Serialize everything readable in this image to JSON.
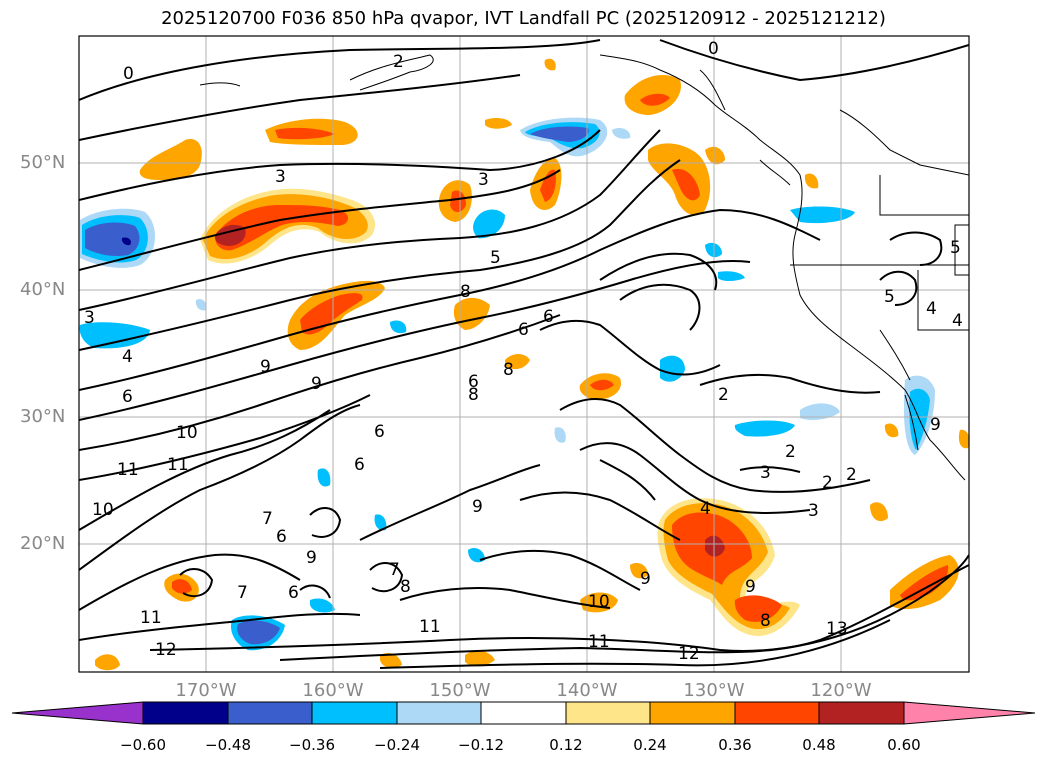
{
  "title": "2025120700 F036 850 hPa qvapor, IVT Landfall PC (2025120912 - 2025121212)",
  "lat_labels": [
    "50°N",
    "40°N",
    "30°N",
    "20°N"
  ],
  "lon_labels": [
    "170°W",
    "160°W",
    "150°W",
    "140°W",
    "130°W",
    "120°W"
  ],
  "colorbar": {
    "colors": [
      "#9932cc",
      "#00008b",
      "#3a5fcd",
      "#00bfff",
      "#add8f6",
      "#ffffff",
      "#ffe58a",
      "#ffa500",
      "#ff4500",
      "#b22222",
      "#ff82ab"
    ],
    "tick_labels": [
      "−0.60",
      "−0.48",
      "−0.36",
      "−0.24",
      "−0.12",
      "0.12",
      "0.24",
      "0.36",
      "0.48",
      "0.60"
    ]
  },
  "contour_labels": [
    "0",
    "0",
    "2",
    "3",
    "3",
    "5",
    "8",
    "6",
    "6",
    "6",
    "8",
    "8",
    "9",
    "6",
    "4",
    "6",
    "3",
    "10",
    "11",
    "11",
    "10",
    "6",
    "9",
    "7",
    "7",
    "6",
    "6",
    "7",
    "8",
    "11",
    "12",
    "11",
    "9",
    "9",
    "10",
    "11",
    "12",
    "4",
    "9",
    "8",
    "13",
    "2",
    "2",
    "3",
    "2",
    "2",
    "3",
    "5",
    "4",
    "4",
    "5",
    "9",
    "9"
  ]
}
